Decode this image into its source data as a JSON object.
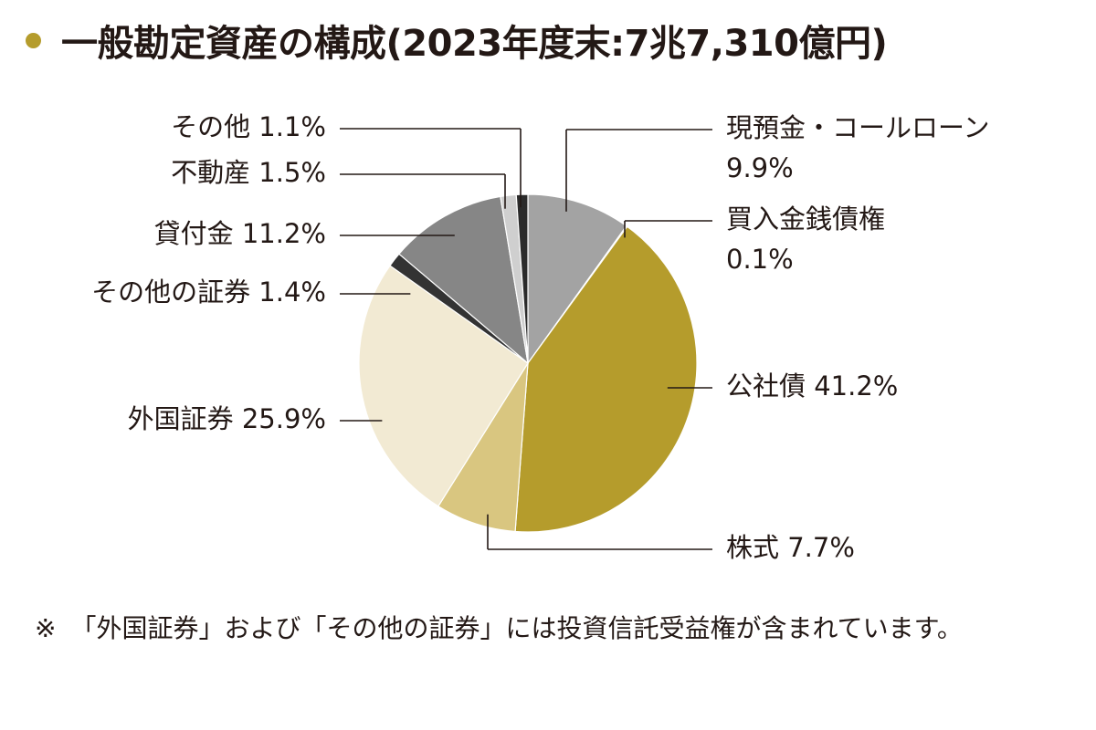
{
  "header": {
    "title": "一般勘定資産の構成(2023年度末:7兆7,310億円)"
  },
  "chart_data": {
    "type": "pie",
    "title": "一般勘定資産の構成(2023年度末:7兆7,310億円)",
    "start": "12 o'clock, clockwise",
    "slices": [
      {
        "name": "現預金・コールローン",
        "value": 9.9,
        "value_label": "9.9%",
        "color": "#a3a3a3"
      },
      {
        "name": "買入金銭債権",
        "value": 0.1,
        "value_label": "0.1%",
        "color": "#5a5a5a"
      },
      {
        "name": "公社債",
        "value": 41.2,
        "value_label": "41.2%",
        "color": "#b59c2c"
      },
      {
        "name": "株式",
        "value": 7.7,
        "value_label": "7.7%",
        "color": "#d9c680"
      },
      {
        "name": "外国証券",
        "value": 25.9,
        "value_label": "25.9%",
        "color": "#f2ead3"
      },
      {
        "name": "その他の証券",
        "value": 1.4,
        "value_label": "1.4%",
        "color": "#333333"
      },
      {
        "name": "貸付金",
        "value": 11.2,
        "value_label": "11.2%",
        "color": "#868686"
      },
      {
        "name": "不動産",
        "value": 1.5,
        "value_label": "1.5%",
        "color": "#cfcfcf"
      },
      {
        "name": "その他",
        "value": 1.1,
        "value_label": "1.1%",
        "color": "#2b2b2b"
      }
    ]
  },
  "footnote": {
    "mark": "※",
    "text": "「外国証券」および「その他の証券」には投資信託受益権が含まれています。"
  },
  "colors": {
    "accent": "#b59c2c",
    "leader_line": "#231815",
    "slice_border": "#ffffff"
  }
}
